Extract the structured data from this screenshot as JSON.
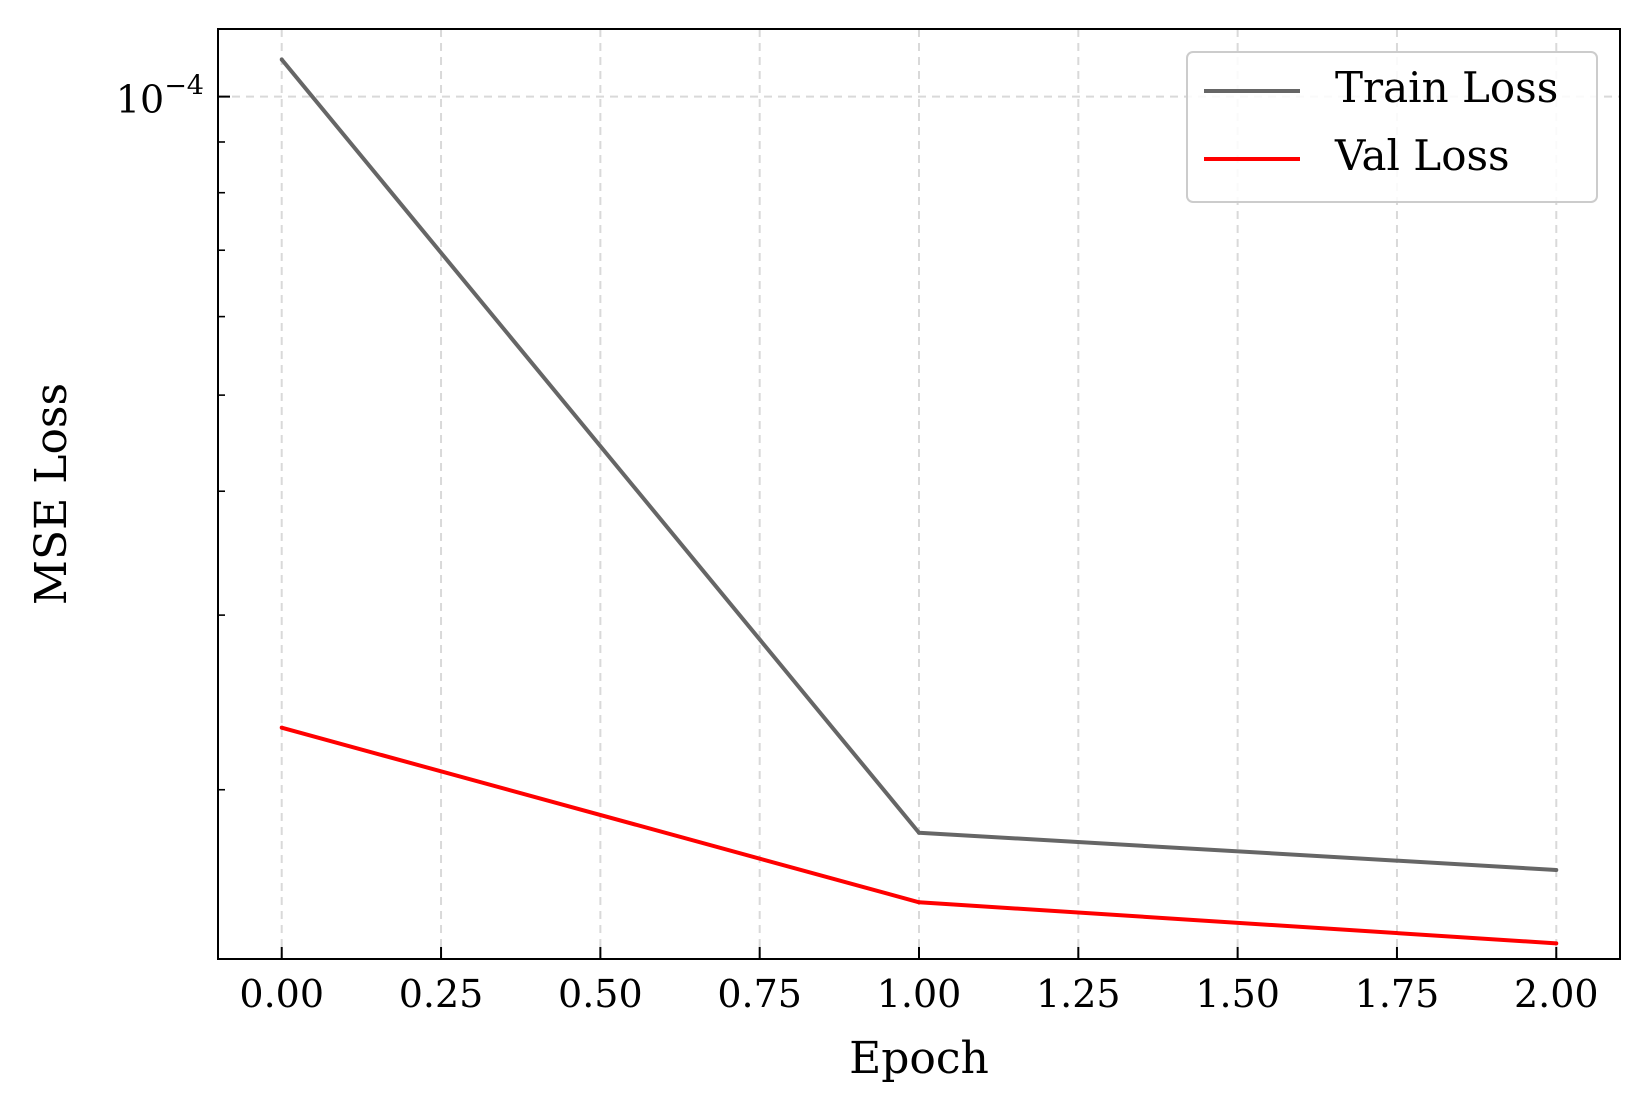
{
  "chart_data": {
    "type": "line",
    "xlabel": "Epoch",
    "ylabel": "MSE Loss",
    "x_ticks": [
      "0.00",
      "0.25",
      "0.50",
      "0.75",
      "1.00",
      "1.25",
      "1.50",
      "1.75",
      "2.00"
    ],
    "y_tick_base": "10",
    "y_tick_exponent": "−4",
    "y_scale": "log",
    "xlim": [
      -0.1,
      2.1
    ],
    "ylim": [
      1.35e-05,
      0.000117
    ],
    "grid": true,
    "legend_position": "top-right",
    "x": [
      0,
      1,
      2
    ],
    "series": [
      {
        "name": "Train Loss",
        "color": "#666666",
        "values": [
          0.000109,
          1.81e-05,
          1.66e-05
        ]
      },
      {
        "name": "Val Loss",
        "color": "#ff0000",
        "values": [
          2.31e-05,
          1.54e-05,
          1.4e-05
        ]
      }
    ]
  }
}
